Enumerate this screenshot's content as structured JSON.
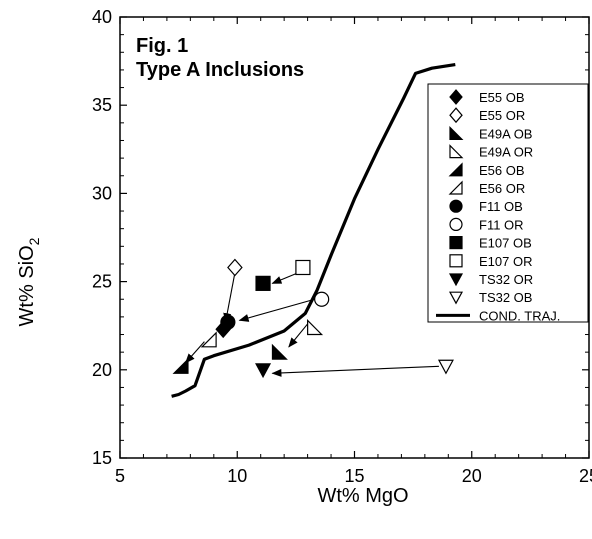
{
  "chart_data": {
    "type": "scatter",
    "title": "Fig. 1",
    "subtitle": "Type A Inclusions",
    "xlabel": "Wt% MgO",
    "ylabel_main": "Wt% SiO",
    "ylabel_sub": "2",
    "xlim": [
      5,
      25
    ],
    "ylim": [
      15,
      40
    ],
    "x_ticks": [
      "5",
      "10",
      "15",
      "20",
      "25"
    ],
    "y_ticks": [
      "15",
      "20",
      "25",
      "30",
      "35",
      "40"
    ],
    "grid": false,
    "legend_position": "top-right",
    "series": [
      {
        "name": "E55 OB",
        "marker": "diamond-filled",
        "x": 9.4,
        "y": 22.3
      },
      {
        "name": "E55 OR",
        "marker": "diamond-open",
        "x": 9.9,
        "y": 25.8
      },
      {
        "name": "E49A OB",
        "marker": "tri-bl-filled",
        "x": 11.8,
        "y": 21.0
      },
      {
        "name": "E49A OR",
        "marker": "tri-bl-open",
        "x": 13.3,
        "y": 22.4
      },
      {
        "name": "E56 OB",
        "marker": "tri-br-filled",
        "x": 7.6,
        "y": 20.2
      },
      {
        "name": "E56 OR",
        "marker": "tri-br-open",
        "x": 8.8,
        "y": 21.7
      },
      {
        "name": "F11 OB",
        "marker": "circle-filled",
        "x": 9.6,
        "y": 22.7
      },
      {
        "name": "F11 OR",
        "marker": "circle-open",
        "x": 13.6,
        "y": 24.0
      },
      {
        "name": "E107 OB",
        "marker": "square-filled",
        "x": 11.1,
        "y": 24.9
      },
      {
        "name": "E107 OR",
        "marker": "square-open",
        "x": 12.8,
        "y": 25.8
      },
      {
        "name": "TS32 OR",
        "marker": "tri-down-filled",
        "x": 11.1,
        "y": 20.0
      },
      {
        "name": "TS32 OB",
        "marker": "tri-down-open",
        "x": 18.9,
        "y": 20.2
      },
      {
        "name": "COND. TRAJ.",
        "type": "line",
        "x": [
          7.2,
          7.5,
          7.8,
          8.2,
          8.6,
          9.0,
          10.5,
          12.0,
          12.9,
          13.4,
          14.0,
          15.0,
          16.0,
          17.1,
          17.6,
          18.3,
          19.3
        ],
        "y": [
          18.5,
          18.6,
          18.8,
          19.1,
          20.6,
          20.8,
          21.4,
          22.2,
          23.2,
          24.5,
          26.5,
          29.7,
          32.5,
          35.4,
          36.8,
          37.1,
          37.3
        ]
      }
    ],
    "arrows": [
      {
        "from": [
          9.9,
          25.5
        ],
        "to": [
          9.5,
          22.7
        ]
      },
      {
        "from": [
          12.6,
          25.5
        ],
        "to": [
          11.5,
          24.9
        ]
      },
      {
        "from": [
          13.3,
          24.0
        ],
        "to": [
          10.1,
          22.8
        ]
      },
      {
        "from": [
          13.0,
          22.6
        ],
        "to": [
          12.2,
          21.3
        ]
      },
      {
        "from": [
          8.6,
          21.6
        ],
        "to": [
          7.8,
          20.4
        ]
      },
      {
        "from": [
          18.6,
          20.2
        ],
        "to": [
          11.5,
          19.8
        ]
      }
    ]
  }
}
